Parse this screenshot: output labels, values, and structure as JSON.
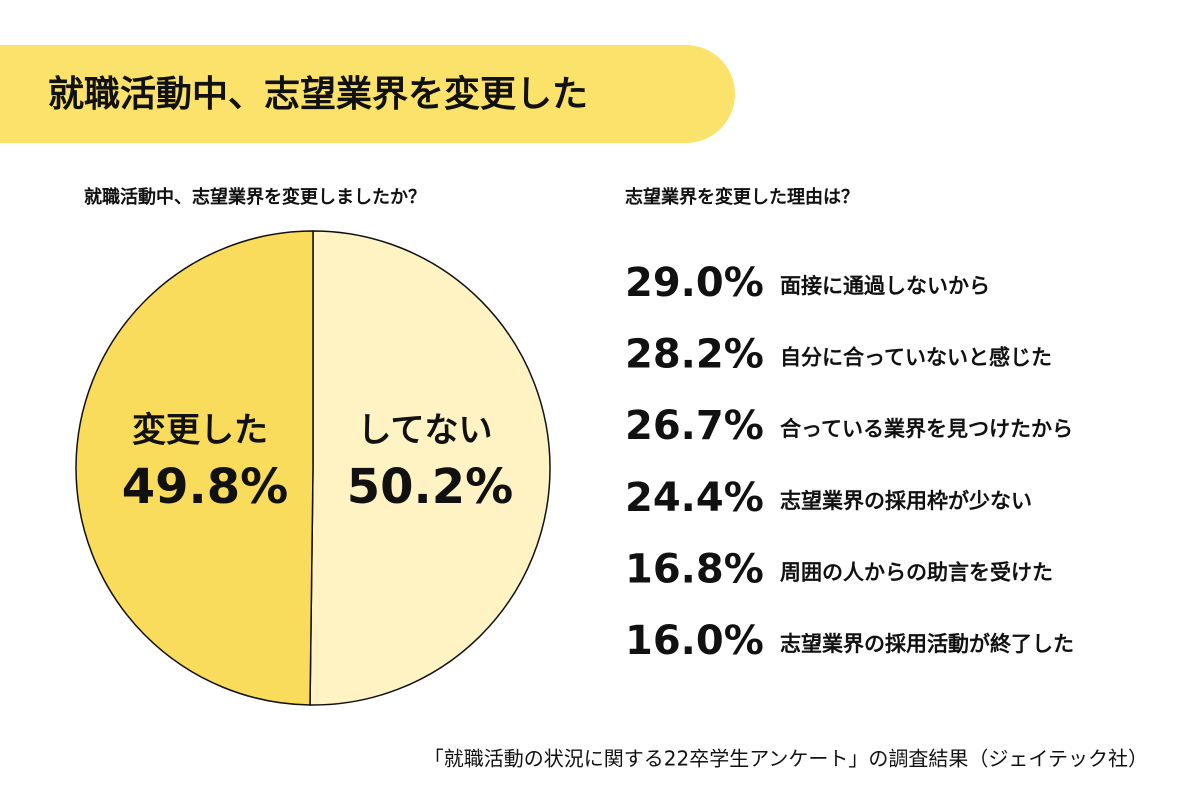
{
  "header": {
    "title": "就職活動中、志望業界を変更した"
  },
  "chart_data": [
    {
      "type": "pie",
      "title": "就職活動中、志望業界を変更しましたか？",
      "categories": [
        "変更した",
        "してない"
      ],
      "values": [
        49.8,
        50.2
      ],
      "value_labels": [
        "49.8%",
        "50.2%"
      ],
      "colors": [
        "#f9dc5c",
        "#fff3c4"
      ]
    },
    {
      "type": "ranked-list",
      "title": "志望業界を変更した理由は？",
      "categories": [
        "面接に通過しないから",
        "自分に合っていないと感じた",
        "合っている業界を見つけたから",
        "志望業界の採用枠が少ない",
        "周囲の人からの助言を受けた",
        "志望業界の採用活動が終了した"
      ],
      "values": [
        29.0,
        28.2,
        26.7,
        24.4,
        16.8,
        16.0
      ],
      "value_labels": [
        "29.0%",
        "28.2%",
        "26.7%",
        "24.4%",
        "16.8%",
        "16.0%"
      ]
    }
  ],
  "footer": {
    "source": "「就職活動の状況に関する22卒学生アンケート」の調査結果（ジェイテック社）"
  }
}
